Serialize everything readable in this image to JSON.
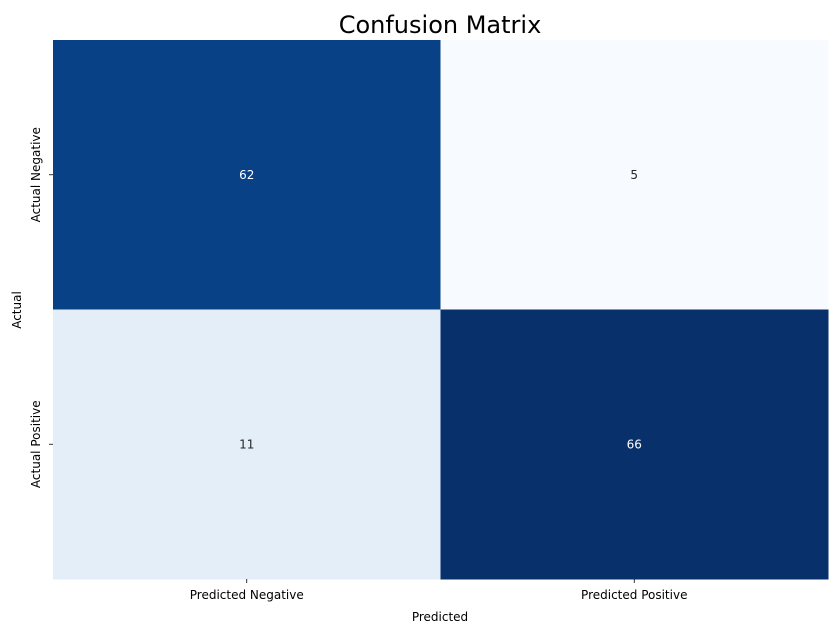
{
  "chart_data": {
    "type": "heatmap",
    "title": "Confusion Matrix",
    "xlabel": "Predicted",
    "ylabel": "Actual",
    "x_categories": [
      "Predicted Negative",
      "Predicted Positive"
    ],
    "y_categories": [
      "Actual Negative",
      "Actual Positive"
    ],
    "values": [
      [
        62,
        5
      ],
      [
        11,
        66
      ]
    ],
    "colormap": "Blues",
    "colorbar": false
  },
  "colors": {
    "scale_low": "#f7fbff",
    "scale_high": "#08306b",
    "text_dark": "#262626",
    "text_light": "#ffffff"
  }
}
